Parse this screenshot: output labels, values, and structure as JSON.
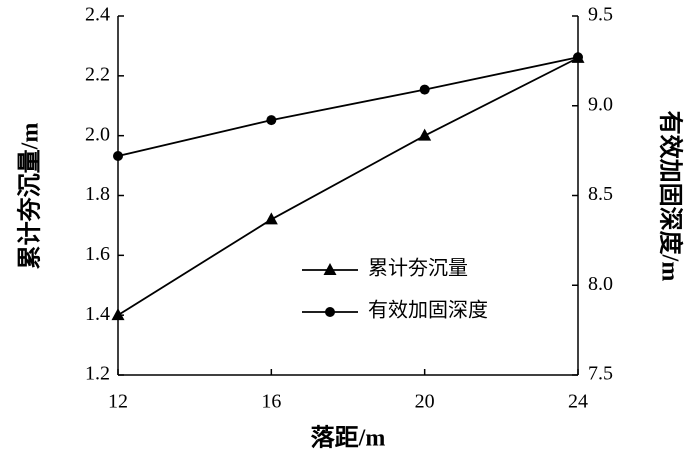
{
  "chart_data": {
    "type": "line",
    "xlabel": "落距/m",
    "ylabel": "累计夯沉量/m",
    "y2label": "有效加固深度/m",
    "x": [
      12,
      16,
      20,
      24
    ],
    "xlim": [
      12,
      24
    ],
    "xticks": [
      12,
      16,
      20,
      24
    ],
    "ylim": [
      1.2,
      2.4
    ],
    "yticks": [
      1.2,
      1.4,
      1.6,
      1.8,
      {
        "value": 2,
        "label": "2.0"
      },
      2.2,
      2.4
    ],
    "y2lim": [
      7.5,
      9.5
    ],
    "y2ticks": [
      7.5,
      {
        "value": 8,
        "label": "8.0"
      },
      8.5,
      {
        "value": 9,
        "label": "9.0"
      },
      9.5
    ],
    "series": [
      {
        "name": "累计夯沉量",
        "color": "#000000",
        "marker": "triangle",
        "values": [
          1.4,
          1.72,
          2.0,
          2.26
        ]
      },
      {
        "name": "有效加固深度",
        "color": "#000000",
        "marker": "circle",
        "axis": "y2",
        "values": [
          8.72,
          8.92,
          9.09,
          9.27
        ]
      }
    ]
  }
}
